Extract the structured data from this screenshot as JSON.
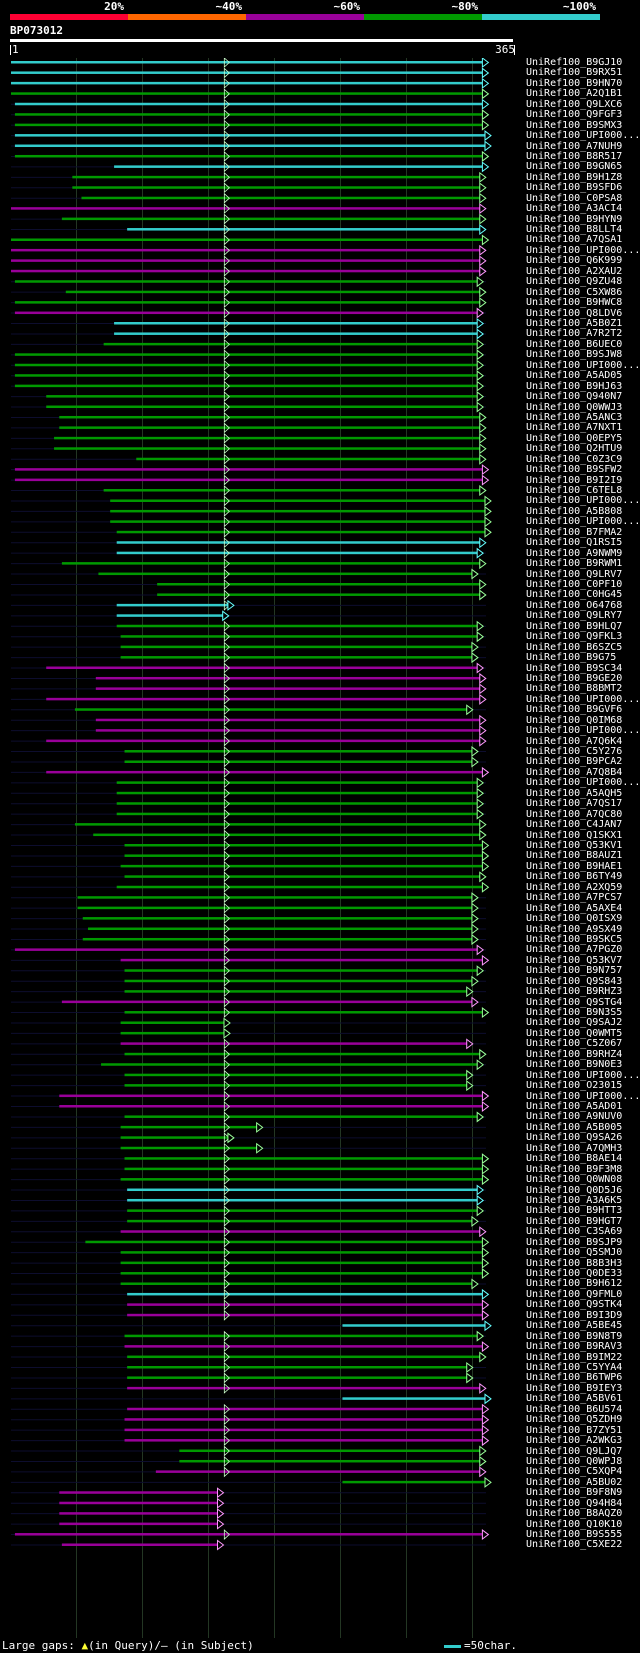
{
  "query": {
    "id": "BP073012",
    "start": "1",
    "end": "365",
    "length": 365
  },
  "scale": {
    "labels": [
      "20%",
      "~40%",
      "~60%",
      "~80%",
      "~100%"
    ],
    "colors": [
      "#ff0033",
      "#ff6600",
      "#990099",
      "#009900",
      "#33cccc"
    ]
  },
  "colors": {
    "cyan": "#33cccc",
    "green": "#009900",
    "magenta": "#990099",
    "gap_marker": "#ffff33"
  },
  "hits": [
    {
      "id": "UniRef100_B9GJ10",
      "start": 1,
      "end": 363,
      "color": "cyan"
    },
    {
      "id": "UniRef100_B9RX51",
      "start": 1,
      "end": 363,
      "color": "cyan"
    },
    {
      "id": "UniRef100_B9HN70",
      "start": 1,
      "end": 363,
      "color": "cyan"
    },
    {
      "id": "UniRef100_A2Q1B1",
      "start": 1,
      "end": 363,
      "color": "green"
    },
    {
      "id": "UniRef100_Q9LXC6",
      "start": 4,
      "end": 363,
      "color": "cyan"
    },
    {
      "id": "UniRef100_Q9FGF3",
      "start": 4,
      "end": 363,
      "color": "green"
    },
    {
      "id": "UniRef100_B9SMX3",
      "start": 4,
      "end": 363,
      "color": "green"
    },
    {
      "id": "UniRef100_UPI000...",
      "start": 4,
      "end": 365,
      "color": "cyan"
    },
    {
      "id": "UniRef100_A7NUH9",
      "start": 4,
      "end": 365,
      "color": "cyan"
    },
    {
      "id": "UniRef100_B8R517",
      "start": 4,
      "end": 363,
      "color": "green"
    },
    {
      "id": "UniRef100_B9GN65",
      "start": 80,
      "end": 363,
      "color": "cyan"
    },
    {
      "id": "UniRef100_B9H1Z8",
      "start": 48,
      "end": 361,
      "color": "green"
    },
    {
      "id": "UniRef100_B9SFD6",
      "start": 48,
      "end": 361,
      "color": "green"
    },
    {
      "id": "UniRef100_C0PSA8",
      "start": 55,
      "end": 361,
      "color": "green"
    },
    {
      "id": "UniRef100_A3ACI4",
      "start": 1,
      "end": 361,
      "color": "magenta"
    },
    {
      "id": "UniRef100_B9HYN9",
      "start": 40,
      "end": 361,
      "color": "green"
    },
    {
      "id": "UniRef100_B8LLT4",
      "start": 90,
      "end": 361,
      "color": "cyan"
    },
    {
      "id": "UniRef100_A7QSA1",
      "start": 1,
      "end": 363,
      "color": "green"
    },
    {
      "id": "UniRef100_UPI000...",
      "start": 1,
      "end": 361,
      "color": "magenta"
    },
    {
      "id": "UniRef100_Q6K999",
      "start": 1,
      "end": 361,
      "color": "magenta"
    },
    {
      "id": "UniRef100_A2XAU2",
      "start": 1,
      "end": 361,
      "color": "magenta"
    },
    {
      "id": "UniRef100_Q9ZU48",
      "start": 4,
      "end": 359,
      "color": "green"
    },
    {
      "id": "UniRef100_C5XW86",
      "start": 43,
      "end": 361,
      "color": "green"
    },
    {
      "id": "UniRef100_B9HWC8",
      "start": 4,
      "end": 361,
      "color": "green"
    },
    {
      "id": "UniRef100_Q8LDV6",
      "start": 4,
      "end": 359,
      "color": "magenta"
    },
    {
      "id": "UniRef100_A5B0Z1",
      "start": 80,
      "end": 359,
      "color": "cyan"
    },
    {
      "id": "UniRef100_A7R2T2",
      "start": 80,
      "end": 359,
      "color": "cyan"
    },
    {
      "id": "UniRef100_B6UEC0",
      "start": 72,
      "end": 359,
      "color": "green"
    },
    {
      "id": "UniRef100_B9SJW8",
      "start": 4,
      "end": 359,
      "color": "green"
    },
    {
      "id": "UniRef100_UPI000...",
      "start": 4,
      "end": 359,
      "color": "green"
    },
    {
      "id": "UniRef100_A5AD05",
      "start": 4,
      "end": 359,
      "color": "green"
    },
    {
      "id": "UniRef100_B9HJ63",
      "start": 4,
      "end": 359,
      "color": "green"
    },
    {
      "id": "UniRef100_Q940N7",
      "start": 28,
      "end": 359,
      "color": "green"
    },
    {
      "id": "UniRef100_Q0WWJ3",
      "start": 28,
      "end": 359,
      "color": "green"
    },
    {
      "id": "UniRef100_A5ANC3",
      "start": 38,
      "end": 361,
      "color": "green"
    },
    {
      "id": "UniRef100_A7NXT1",
      "start": 38,
      "end": 361,
      "color": "green"
    },
    {
      "id": "UniRef100_Q0EPY5",
      "start": 34,
      "end": 361,
      "color": "green"
    },
    {
      "id": "UniRef100_Q2HTU9",
      "start": 34,
      "end": 361,
      "color": "green"
    },
    {
      "id": "UniRef100_C0Z3C9",
      "start": 97,
      "end": 361,
      "color": "green"
    },
    {
      "id": "UniRef100_B9SFW2",
      "start": 4,
      "end": 363,
      "color": "magenta"
    },
    {
      "id": "UniRef100_B9I2I9",
      "start": 4,
      "end": 363,
      "color": "magenta"
    },
    {
      "id": "UniRef100_C6TEL8",
      "start": 72,
      "end": 361,
      "color": "green"
    },
    {
      "id": "UniRef100_UPI000...",
      "start": 77,
      "end": 365,
      "color": "green"
    },
    {
      "id": "UniRef100_A5B808",
      "start": 77,
      "end": 365,
      "color": "green"
    },
    {
      "id": "UniRef100_UPI000...",
      "start": 77,
      "end": 365,
      "color": "green"
    },
    {
      "id": "UniRef100_B7FMA2",
      "start": 82,
      "end": 365,
      "color": "green"
    },
    {
      "id": "UniRef100_Q1RSI5",
      "start": 82,
      "end": 361,
      "color": "cyan"
    },
    {
      "id": "UniRef100_A9NWM9",
      "start": 82,
      "end": 359,
      "color": "cyan"
    },
    {
      "id": "UniRef100_B9RWM1",
      "start": 40,
      "end": 361,
      "color": "green"
    },
    {
      "id": "UniRef100_Q9LRV7",
      "start": 68,
      "end": 355,
      "color": "green"
    },
    {
      "id": "UniRef100_C0PF10",
      "start": 113,
      "end": 361,
      "color": "green"
    },
    {
      "id": "UniRef100_C0HG45",
      "start": 113,
      "end": 361,
      "color": "green"
    },
    {
      "id": "UniRef100_O64768",
      "start": 82,
      "end": 168,
      "color": "cyan"
    },
    {
      "id": "UniRef100_Q9LRY7",
      "start": 82,
      "end": 164,
      "color": "cyan"
    },
    {
      "id": "UniRef100_B9HLQ7",
      "start": 82,
      "end": 359,
      "color": "green"
    },
    {
      "id": "UniRef100_Q9FKL3",
      "start": 85,
      "end": 359,
      "color": "green"
    },
    {
      "id": "UniRef100_B6SZC5",
      "start": 85,
      "end": 355,
      "color": "green"
    },
    {
      "id": "UniRef100_B9G75",
      "start": 85,
      "end": 355,
      "color": "green"
    },
    {
      "id": "UniRef100_B9SC34",
      "start": 28,
      "end": 359,
      "color": "magenta"
    },
    {
      "id": "UniRef100_B9GE20",
      "start": 66,
      "end": 361,
      "color": "magenta"
    },
    {
      "id": "UniRef100_B8BMT2",
      "start": 66,
      "end": 361,
      "color": "magenta"
    },
    {
      "id": "UniRef100_UPI000...",
      "start": 28,
      "end": 361,
      "color": "magenta"
    },
    {
      "id": "UniRef100_B9GVF6",
      "start": 50,
      "end": 351,
      "color": "green"
    },
    {
      "id": "UniRef100_Q0IM68",
      "start": 66,
      "end": 361,
      "color": "magenta"
    },
    {
      "id": "UniRef100_UPI000...",
      "start": 66,
      "end": 361,
      "color": "magenta"
    },
    {
      "id": "UniRef100_A7Q6K4",
      "start": 28,
      "end": 361,
      "color": "magenta"
    },
    {
      "id": "UniRef100_C5Y276",
      "start": 88,
      "end": 355,
      "color": "green"
    },
    {
      "id": "UniRef100_B9PCA2",
      "start": 88,
      "end": 355,
      "color": "green"
    },
    {
      "id": "UniRef100_A7Q8B4",
      "start": 28,
      "end": 363,
      "color": "magenta"
    },
    {
      "id": "UniRef100_UPI000...",
      "start": 82,
      "end": 359,
      "color": "green"
    },
    {
      "id": "UniRef100_A5AQH5",
      "start": 82,
      "end": 359,
      "color": "green"
    },
    {
      "id": "UniRef100_A7QS17",
      "start": 82,
      "end": 359,
      "color": "green"
    },
    {
      "id": "UniRef100_A7QC80",
      "start": 82,
      "end": 359,
      "color": "green"
    },
    {
      "id": "UniRef100_C4JAN7",
      "start": 50,
      "end": 361,
      "color": "green"
    },
    {
      "id": "UniRef100_Q1SKX1",
      "start": 64,
      "end": 361,
      "color": "green"
    },
    {
      "id": "UniRef100_Q53KV1",
      "start": 88,
      "end": 363,
      "color": "green"
    },
    {
      "id": "UniRef100_B8AUZ1",
      "start": 88,
      "end": 363,
      "color": "green"
    },
    {
      "id": "UniRef100_B9HAE1",
      "start": 85,
      "end": 363,
      "color": "green"
    },
    {
      "id": "UniRef100_B6TY49",
      "start": 88,
      "end": 361,
      "color": "green"
    },
    {
      "id": "UniRef100_A2XQ59",
      "start": 82,
      "end": 363,
      "color": "green"
    },
    {
      "id": "UniRef100_A7PCS7",
      "start": 52,
      "end": 355,
      "color": "green"
    },
    {
      "id": "UniRef100_A5AXE4",
      "start": 52,
      "end": 355,
      "color": "green"
    },
    {
      "id": "UniRef100_Q0ISX9",
      "start": 56,
      "end": 355,
      "color": "green"
    },
    {
      "id": "UniRef100_A9SX49",
      "start": 60,
      "end": 355,
      "color": "green"
    },
    {
      "id": "UniRef100_B9SKC5",
      "start": 56,
      "end": 355,
      "color": "green"
    },
    {
      "id": "UniRef100_A7PGZ0",
      "start": 4,
      "end": 359,
      "color": "magenta"
    },
    {
      "id": "UniRef100_Q53KV7",
      "start": 85,
      "end": 363,
      "color": "magenta"
    },
    {
      "id": "UniRef100_B9N757",
      "start": 88,
      "end": 359,
      "color": "green"
    },
    {
      "id": "UniRef100_Q9S843",
      "start": 88,
      "end": 355,
      "color": "green"
    },
    {
      "id": "UniRef100_B9RHZ3",
      "start": 88,
      "end": 351,
      "color": "green"
    },
    {
      "id": "UniRef100_Q9STG4",
      "start": 40,
      "end": 355,
      "color": "magenta"
    },
    {
      "id": "UniRef100_B9N3S5",
      "start": 88,
      "end": 363,
      "color": "green"
    },
    {
      "id": "UniRef100_Q9SAJ2",
      "start": 85,
      "end": 165,
      "color": "green"
    },
    {
      "id": "UniRef100_Q0WMT5",
      "start": 85,
      "end": 165,
      "color": "green"
    },
    {
      "id": "UniRef100_C5Z067",
      "start": 85,
      "end": 351,
      "color": "magenta"
    },
    {
      "id": "UniRef100_B9RHZ4",
      "start": 88,
      "end": 361,
      "color": "green"
    },
    {
      "id": "UniRef100_B9N0E3",
      "start": 70,
      "end": 359,
      "color": "green"
    },
    {
      "id": "UniRef100_UPI000...",
      "start": 88,
      "end": 351,
      "color": "green"
    },
    {
      "id": "UniRef100_O23015",
      "start": 88,
      "end": 351,
      "color": "green"
    },
    {
      "id": "UniRef100_UPI000...",
      "start": 38,
      "end": 363,
      "color": "magenta"
    },
    {
      "id": "UniRef100_A5AD01",
      "start": 38,
      "end": 363,
      "color": "magenta"
    },
    {
      "id": "UniRef100_A9NUV0",
      "start": 88,
      "end": 359,
      "color": "green"
    },
    {
      "id": "UniRef100_A5B005",
      "start": 85,
      "end": 190,
      "color": "green"
    },
    {
      "id": "UniRef100_Q9SA26",
      "start": 85,
      "end": 168,
      "color": "green"
    },
    {
      "id": "UniRef100_A7QMH3",
      "start": 85,
      "end": 190,
      "color": "green"
    },
    {
      "id": "UniRef100_B8AE14",
      "start": 88,
      "end": 363,
      "color": "green"
    },
    {
      "id": "UniRef100_B9F3M8",
      "start": 88,
      "end": 363,
      "color": "green"
    },
    {
      "id": "UniRef100_Q0WN08",
      "start": 85,
      "end": 363,
      "color": "green"
    },
    {
      "id": "UniRef100_Q0D5J6",
      "start": 90,
      "end": 359,
      "color": "cyan"
    },
    {
      "id": "UniRef100_A3A6K5",
      "start": 90,
      "end": 359,
      "color": "cyan"
    },
    {
      "id": "UniRef100_B9HTT3",
      "start": 90,
      "end": 359,
      "color": "green"
    },
    {
      "id": "UniRef100_B9HGT7",
      "start": 90,
      "end": 355,
      "color": "green"
    },
    {
      "id": "UniRef100_C3SA69",
      "start": 85,
      "end": 361,
      "color": "magenta"
    },
    {
      "id": "UniRef100_B9SJP9",
      "start": 58,
      "end": 363,
      "color": "green"
    },
    {
      "id": "UniRef100_Q5SMJ0",
      "start": 85,
      "end": 363,
      "color": "green"
    },
    {
      "id": "UniRef100_B8B3H3",
      "start": 85,
      "end": 363,
      "color": "green"
    },
    {
      "id": "UniRef100_Q0DE33",
      "start": 85,
      "end": 363,
      "color": "green"
    },
    {
      "id": "UniRef100_B9H612",
      "start": 85,
      "end": 355,
      "color": "green"
    },
    {
      "id": "UniRef100_Q9FML0",
      "start": 90,
      "end": 363,
      "color": "cyan"
    },
    {
      "id": "UniRef100_Q9STK4",
      "start": 90,
      "end": 363,
      "color": "magenta"
    },
    {
      "id": "UniRef100_B9I3D9",
      "start": 90,
      "end": 363,
      "color": "magenta"
    },
    {
      "id": "UniRef100_A5BE45",
      "start": 255,
      "end": 365,
      "color": "cyan"
    },
    {
      "id": "UniRef100_B9N8T9",
      "start": 88,
      "end": 359,
      "color": "green"
    },
    {
      "id": "UniRef100_B9RAV3",
      "start": 88,
      "end": 363,
      "color": "magenta"
    },
    {
      "id": "UniRef100_B9IM22",
      "start": 90,
      "end": 361,
      "color": "green"
    },
    {
      "id": "UniRef100_C5YYA4",
      "start": 90,
      "end": 351,
      "color": "green"
    },
    {
      "id": "UniRef100_B6TWP6",
      "start": 90,
      "end": 351,
      "color": "green"
    },
    {
      "id": "UniRef100_B9IEY3",
      "start": 90,
      "end": 361,
      "color": "magenta"
    },
    {
      "id": "UniRef100_A5BV61",
      "start": 255,
      "end": 365,
      "color": "cyan"
    },
    {
      "id": "UniRef100_B6U574",
      "start": 90,
      "end": 363,
      "color": "magenta"
    },
    {
      "id": "UniRef100_Q5ZDH9",
      "start": 88,
      "end": 363,
      "color": "magenta"
    },
    {
      "id": "UniRef100_B7ZY51",
      "start": 88,
      "end": 363,
      "color": "magenta"
    },
    {
      "id": "UniRef100_A2WKG3",
      "start": 88,
      "end": 363,
      "color": "magenta"
    },
    {
      "id": "UniRef100_Q9LJQ7",
      "start": 130,
      "end": 361,
      "color": "green"
    },
    {
      "id": "UniRef100_Q0WPJ8",
      "start": 130,
      "end": 361,
      "color": "green"
    },
    {
      "id": "UniRef100_C5XQP4",
      "start": 112,
      "end": 361,
      "color": "magenta"
    },
    {
      "id": "UniRef100_A5BU02",
      "start": 255,
      "end": 365,
      "color": "green"
    },
    {
      "id": "UniRef100_B9F8N9",
      "start": 38,
      "end": 160,
      "color": "magenta"
    },
    {
      "id": "UniRef100_Q94H84",
      "start": 38,
      "end": 160,
      "color": "magenta"
    },
    {
      "id": "UniRef100_B8AQZ0",
      "start": 38,
      "end": 160,
      "color": "magenta"
    },
    {
      "id": "UniRef100_Q10K10",
      "start": 38,
      "end": 160,
      "color": "magenta"
    },
    {
      "id": "UniRef100_B9S555",
      "start": 4,
      "end": 363,
      "color": "magenta"
    },
    {
      "id": "UniRef100_C5XE22",
      "start": 40,
      "end": 160,
      "color": "magenta"
    }
  ],
  "legend": {
    "large_gaps_label": "Large gaps:",
    "query_gap_label": "(in Query)/",
    "subject_gap_label": "(in Subject)",
    "length_label": "=50char."
  }
}
